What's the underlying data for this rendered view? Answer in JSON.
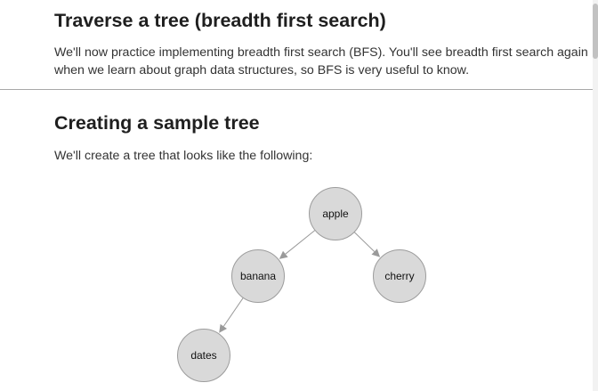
{
  "sections": [
    {
      "title": "Traverse a tree (breadth first search)",
      "body": "We'll now practice implementing breadth first search (BFS). You'll see breadth first search again when we learn about graph data structures, so BFS is very useful to know."
    },
    {
      "title": "Creating a sample tree",
      "body": "We'll create a tree that looks like the following:"
    }
  ],
  "tree": {
    "nodes": [
      {
        "id": "apple",
        "label": "apple"
      },
      {
        "id": "banana",
        "label": "banana"
      },
      {
        "id": "cherry",
        "label": "cherry"
      },
      {
        "id": "dates",
        "label": "dates"
      }
    ],
    "edges": [
      {
        "from": "apple",
        "to": "banana"
      },
      {
        "from": "apple",
        "to": "cherry"
      },
      {
        "from": "banana",
        "to": "dates"
      }
    ]
  },
  "colors": {
    "node_fill": "#d9d9d9",
    "node_stroke": "#9c9c9c",
    "edge": "#9a9a9a",
    "divider": "#a8a8a8"
  }
}
